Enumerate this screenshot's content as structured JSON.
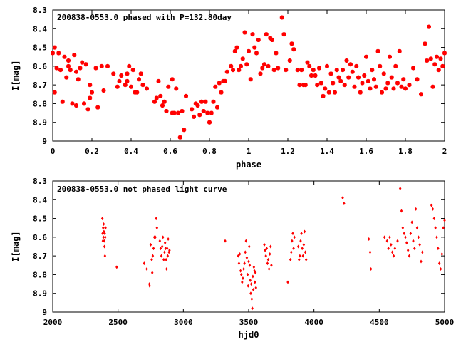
{
  "colors": {
    "points": "#ff0000",
    "frame": "#000000",
    "background": "#ffffff"
  },
  "chart_data": [
    {
      "type": "scatter",
      "title": "200838-0553.0 phased with P=132.80day",
      "xlabel": "phase",
      "ylabel": "I[mag]",
      "xlim": [
        0,
        2
      ],
      "ylim": [
        9,
        8.3
      ],
      "y_inverted": true,
      "marker": "cross",
      "x_ticks": [
        0,
        0.2,
        0.4,
        0.6,
        0.8,
        1,
        1.2,
        1.4,
        1.6,
        1.8,
        2
      ],
      "x_tick_labels": [
        "0",
        "0.2",
        "0.4",
        "0.6",
        "0.8",
        "1",
        "1.2",
        "1.4",
        "1.6",
        "1.8",
        "2"
      ],
      "y_ticks": [
        8.3,
        8.4,
        8.5,
        8.6,
        8.7,
        8.8,
        8.9,
        9
      ],
      "y_tick_labels": [
        "8.3",
        "8.4",
        "8.5",
        "8.6",
        "8.7",
        "8.8",
        "8.9",
        "9"
      ],
      "points": [
        [
          0.0,
          8.53
        ],
        [
          0.01,
          8.74
        ],
        [
          0.01,
          8.5
        ],
        [
          0.02,
          8.61
        ],
        [
          0.03,
          8.53
        ],
        [
          0.04,
          8.62
        ],
        [
          0.05,
          8.79
        ],
        [
          0.06,
          8.55
        ],
        [
          0.07,
          8.66
        ],
        [
          0.08,
          8.57
        ],
        [
          0.08,
          8.6
        ],
        [
          0.09,
          8.62
        ],
        [
          0.1,
          8.8
        ],
        [
          0.11,
          8.54
        ],
        [
          0.12,
          8.63
        ],
        [
          0.12,
          8.81
        ],
        [
          0.13,
          8.67
        ],
        [
          0.14,
          8.61
        ],
        [
          0.15,
          8.58
        ],
        [
          0.16,
          8.8
        ],
        [
          0.17,
          8.59
        ],
        [
          0.18,
          8.83
        ],
        [
          0.19,
          8.77
        ],
        [
          0.19,
          8.7
        ],
        [
          0.2,
          8.74
        ],
        [
          0.22,
          8.61
        ],
        [
          0.23,
          8.82
        ],
        [
          0.25,
          8.6
        ],
        [
          0.26,
          8.73
        ],
        [
          0.28,
          8.6
        ],
        [
          0.31,
          8.64
        ],
        [
          0.33,
          8.71
        ],
        [
          0.34,
          8.68
        ],
        [
          0.35,
          8.65
        ],
        [
          0.37,
          8.7
        ],
        [
          0.38,
          8.64
        ],
        [
          0.38,
          8.68
        ],
        [
          0.39,
          8.6
        ],
        [
          0.4,
          8.71
        ],
        [
          0.41,
          8.62
        ],
        [
          0.42,
          8.74
        ],
        [
          0.43,
          8.74
        ],
        [
          0.44,
          8.67
        ],
        [
          0.45,
          8.64
        ],
        [
          0.46,
          8.7
        ],
        [
          0.48,
          8.72
        ],
        [
          0.52,
          8.79
        ],
        [
          0.53,
          8.77
        ],
        [
          0.54,
          8.68
        ],
        [
          0.55,
          8.76
        ],
        [
          0.56,
          8.81
        ],
        [
          0.57,
          8.79
        ],
        [
          0.58,
          8.84
        ],
        [
          0.59,
          8.71
        ],
        [
          0.61,
          8.85
        ],
        [
          0.61,
          8.67
        ],
        [
          0.62,
          8.85
        ],
        [
          0.63,
          8.72
        ],
        [
          0.64,
          8.85
        ],
        [
          0.65,
          8.98
        ],
        [
          0.66,
          8.84
        ],
        [
          0.67,
          8.94
        ],
        [
          0.68,
          8.76
        ],
        [
          0.71,
          8.83
        ],
        [
          0.72,
          8.87
        ],
        [
          0.73,
          8.8
        ],
        [
          0.74,
          8.81
        ],
        [
          0.75,
          8.86
        ],
        [
          0.76,
          8.79
        ],
        [
          0.77,
          8.84
        ],
        [
          0.78,
          8.79
        ],
        [
          0.79,
          8.85
        ],
        [
          0.8,
          8.9
        ],
        [
          0.81,
          8.85
        ],
        [
          0.82,
          8.79
        ],
        [
          0.83,
          8.71
        ],
        [
          0.84,
          8.82
        ],
        [
          0.85,
          8.69
        ],
        [
          0.86,
          8.74
        ],
        [
          0.87,
          8.68
        ],
        [
          0.88,
          8.68
        ],
        [
          0.89,
          8.63
        ],
        [
          0.91,
          8.6
        ],
        [
          0.92,
          8.62
        ],
        [
          0.93,
          8.52
        ],
        [
          0.94,
          8.5
        ],
        [
          0.95,
          8.62
        ],
        [
          0.96,
          8.6
        ],
        [
          0.97,
          8.56
        ],
        [
          0.98,
          8.42
        ],
        [
          0.99,
          8.59
        ],
        [
          1.0,
          8.52
        ],
        [
          1.01,
          8.67
        ],
        [
          1.02,
          8.43
        ],
        [
          1.03,
          8.5
        ],
        [
          1.04,
          8.53
        ],
        [
          1.05,
          8.46
        ],
        [
          1.06,
          8.64
        ],
        [
          1.07,
          8.61
        ],
        [
          1.08,
          8.59
        ],
        [
          1.09,
          8.43
        ],
        [
          1.1,
          8.6
        ],
        [
          1.11,
          8.45
        ],
        [
          1.12,
          8.46
        ],
        [
          1.13,
          8.62
        ],
        [
          1.14,
          8.53
        ],
        [
          1.15,
          8.61
        ],
        [
          1.17,
          8.34
        ],
        [
          1.18,
          8.43
        ],
        [
          1.19,
          8.62
        ],
        [
          1.21,
          8.57
        ],
        [
          1.22,
          8.48
        ],
        [
          1.23,
          8.51
        ],
        [
          1.25,
          8.62
        ],
        [
          1.26,
          8.7
        ],
        [
          1.27,
          8.62
        ],
        [
          1.28,
          8.7
        ],
        [
          1.29,
          8.7
        ],
        [
          1.3,
          8.58
        ],
        [
          1.31,
          8.6
        ],
        [
          1.32,
          8.65
        ],
        [
          1.33,
          8.62
        ],
        [
          1.34,
          8.65
        ],
        [
          1.35,
          8.7
        ],
        [
          1.36,
          8.61
        ],
        [
          1.37,
          8.69
        ],
        [
          1.38,
          8.76
        ],
        [
          1.39,
          8.72
        ],
        [
          1.4,
          8.6
        ],
        [
          1.41,
          8.74
        ],
        [
          1.42,
          8.64
        ],
        [
          1.43,
          8.69
        ],
        [
          1.44,
          8.74
        ],
        [
          1.45,
          8.62
        ],
        [
          1.46,
          8.66
        ],
        [
          1.47,
          8.68
        ],
        [
          1.48,
          8.62
        ],
        [
          1.49,
          8.7
        ],
        [
          1.5,
          8.57
        ],
        [
          1.51,
          8.66
        ],
        [
          1.52,
          8.59
        ],
        [
          1.53,
          8.63
        ],
        [
          1.54,
          8.71
        ],
        [
          1.55,
          8.6
        ],
        [
          1.56,
          8.66
        ],
        [
          1.57,
          8.74
        ],
        [
          1.58,
          8.69
        ],
        [
          1.59,
          8.65
        ],
        [
          1.6,
          8.55
        ],
        [
          1.61,
          8.68
        ],
        [
          1.62,
          8.72
        ],
        [
          1.63,
          8.62
        ],
        [
          1.64,
          8.67
        ],
        [
          1.65,
          8.71
        ],
        [
          1.66,
          8.52
        ],
        [
          1.67,
          8.6
        ],
        [
          1.68,
          8.74
        ],
        [
          1.69,
          8.64
        ],
        [
          1.7,
          8.72
        ],
        [
          1.71,
          8.69
        ],
        [
          1.72,
          8.55
        ],
        [
          1.73,
          8.66
        ],
        [
          1.74,
          8.72
        ],
        [
          1.75,
          8.6
        ],
        [
          1.76,
          8.69
        ],
        [
          1.77,
          8.52
        ],
        [
          1.78,
          8.71
        ],
        [
          1.79,
          8.67
        ],
        [
          1.8,
          8.72
        ],
        [
          1.82,
          8.7
        ],
        [
          1.84,
          8.61
        ],
        [
          1.86,
          8.67
        ],
        [
          1.88,
          8.75
        ],
        [
          1.9,
          8.48
        ],
        [
          1.91,
          8.57
        ],
        [
          1.92,
          8.39
        ],
        [
          1.93,
          8.56
        ],
        [
          1.94,
          8.71
        ],
        [
          1.95,
          8.59
        ],
        [
          1.96,
          8.55
        ],
        [
          1.97,
          8.62
        ],
        [
          1.98,
          8.56
        ],
        [
          1.99,
          8.6
        ],
        [
          2.0,
          8.53
        ]
      ]
    },
    {
      "type": "scatter",
      "title": "200838-0553.0 not phased light curve",
      "xlabel": "hjd0",
      "ylabel": "I[mag]",
      "xlim": [
        2000,
        5000
      ],
      "ylim": [
        9,
        8.3
      ],
      "y_inverted": true,
      "marker": "diamond",
      "x_ticks": [
        2000,
        2500,
        3000,
        3500,
        4000,
        4500,
        5000
      ],
      "x_tick_labels": [
        "2000",
        "2500",
        "3000",
        "3500",
        "4000",
        "4500",
        "5000"
      ],
      "y_ticks": [
        8.3,
        8.4,
        8.5,
        8.6,
        8.7,
        8.8,
        8.9,
        9
      ],
      "y_tick_labels": [
        "8.3",
        "8.4",
        "8.5",
        "8.6",
        "8.7",
        "8.8",
        "8.9",
        "9"
      ],
      "points": [
        [
          2380,
          8.5
        ],
        [
          2382,
          8.58
        ],
        [
          2384,
          8.62
        ],
        [
          2386,
          8.55
        ],
        [
          2388,
          8.6
        ],
        [
          2390,
          8.53
        ],
        [
          2392,
          8.57
        ],
        [
          2394,
          8.62
        ],
        [
          2396,
          8.65
        ],
        [
          2398,
          8.58
        ],
        [
          2400,
          8.7
        ],
        [
          2402,
          8.6
        ],
        [
          2404,
          8.55
        ],
        [
          2490,
          8.76
        ],
        [
          2700,
          8.74
        ],
        [
          2720,
          8.77
        ],
        [
          2740,
          8.85
        ],
        [
          2742,
          8.86
        ],
        [
          2750,
          8.64
        ],
        [
          2758,
          8.72
        ],
        [
          2762,
          8.79
        ],
        [
          2766,
          8.7
        ],
        [
          2772,
          8.66
        ],
        [
          2778,
          8.6
        ],
        [
          2786,
          8.6
        ],
        [
          2792,
          8.5
        ],
        [
          2798,
          8.55
        ],
        [
          2820,
          8.62
        ],
        [
          2826,
          8.66
        ],
        [
          2832,
          8.7
        ],
        [
          2838,
          8.65
        ],
        [
          2844,
          8.6
        ],
        [
          2850,
          8.72
        ],
        [
          2856,
          8.68
        ],
        [
          2860,
          8.63
        ],
        [
          2864,
          8.66
        ],
        [
          2868,
          8.72
        ],
        [
          2872,
          8.77
        ],
        [
          2876,
          8.66
        ],
        [
          2880,
          8.7
        ],
        [
          2884,
          8.61
        ],
        [
          2890,
          8.68
        ],
        [
          2894,
          8.67
        ],
        [
          3320,
          8.62
        ],
        [
          3420,
          8.7
        ],
        [
          3426,
          8.74
        ],
        [
          3432,
          8.69
        ],
        [
          3438,
          8.78
        ],
        [
          3444,
          8.8
        ],
        [
          3450,
          8.84
        ],
        [
          3456,
          8.82
        ],
        [
          3462,
          8.77
        ],
        [
          3468,
          8.74
        ],
        [
          3474,
          8.68
        ],
        [
          3480,
          8.62
        ],
        [
          3486,
          8.71
        ],
        [
          3492,
          8.8
        ],
        [
          3496,
          8.86
        ],
        [
          3500,
          8.73
        ],
        [
          3504,
          8.65
        ],
        [
          3508,
          8.75
        ],
        [
          3512,
          8.83
        ],
        [
          3516,
          8.9
        ],
        [
          3520,
          8.85
        ],
        [
          3524,
          8.93
        ],
        [
          3528,
          8.98
        ],
        [
          3532,
          8.81
        ],
        [
          3536,
          8.88
        ],
        [
          3540,
          8.76
        ],
        [
          3544,
          8.78
        ],
        [
          3548,
          8.84
        ],
        [
          3552,
          8.79
        ],
        [
          3556,
          8.87
        ],
        [
          3620,
          8.64
        ],
        [
          3626,
          8.67
        ],
        [
          3632,
          8.7
        ],
        [
          3638,
          8.66
        ],
        [
          3644,
          8.74
        ],
        [
          3650,
          8.72
        ],
        [
          3656,
          8.77
        ],
        [
          3662,
          8.69
        ],
        [
          3668,
          8.65
        ],
        [
          3674,
          8.75
        ],
        [
          3800,
          8.84
        ],
        [
          3820,
          8.72
        ],
        [
          3826,
          8.68
        ],
        [
          3832,
          8.62
        ],
        [
          3838,
          8.58
        ],
        [
          3844,
          8.66
        ],
        [
          3850,
          8.6
        ],
        [
          3880,
          8.65
        ],
        [
          3886,
          8.72
        ],
        [
          3892,
          8.7
        ],
        [
          3898,
          8.62
        ],
        [
          3904,
          8.58
        ],
        [
          3910,
          8.66
        ],
        [
          3916,
          8.7
        ],
        [
          3922,
          8.64
        ],
        [
          3928,
          8.57
        ],
        [
          3934,
          8.68
        ],
        [
          3940,
          8.72
        ],
        [
          4220,
          8.39
        ],
        [
          4230,
          8.42
        ],
        [
          4420,
          8.61
        ],
        [
          4430,
          8.68
        ],
        [
          4436,
          8.77
        ],
        [
          4540,
          8.6
        ],
        [
          4560,
          8.62
        ],
        [
          4570,
          8.66
        ],
        [
          4580,
          8.6
        ],
        [
          4590,
          8.64
        ],
        [
          4600,
          8.68
        ],
        [
          4610,
          8.7
        ],
        [
          4620,
          8.66
        ],
        [
          4640,
          8.62
        ],
        [
          4660,
          8.34
        ],
        [
          4670,
          8.46
        ],
        [
          4680,
          8.55
        ],
        [
          4690,
          8.58
        ],
        [
          4700,
          8.6
        ],
        [
          4710,
          8.63
        ],
        [
          4720,
          8.67
        ],
        [
          4730,
          8.7
        ],
        [
          4740,
          8.58
        ],
        [
          4750,
          8.52
        ],
        [
          4760,
          8.62
        ],
        [
          4770,
          8.66
        ],
        [
          4780,
          8.45
        ],
        [
          4790,
          8.55
        ],
        [
          4800,
          8.6
        ],
        [
          4810,
          8.64
        ],
        [
          4820,
          8.73
        ],
        [
          4830,
          8.68
        ],
        [
          4900,
          8.43
        ],
        [
          4910,
          8.45
        ],
        [
          4920,
          8.5
        ],
        [
          4930,
          8.55
        ],
        [
          4940,
          8.6
        ],
        [
          4950,
          8.66
        ],
        [
          4960,
          8.74
        ],
        [
          4970,
          8.77
        ],
        [
          4980,
          8.69
        ],
        [
          4990,
          8.55
        ],
        [
          5000,
          8.51
        ]
      ]
    }
  ]
}
